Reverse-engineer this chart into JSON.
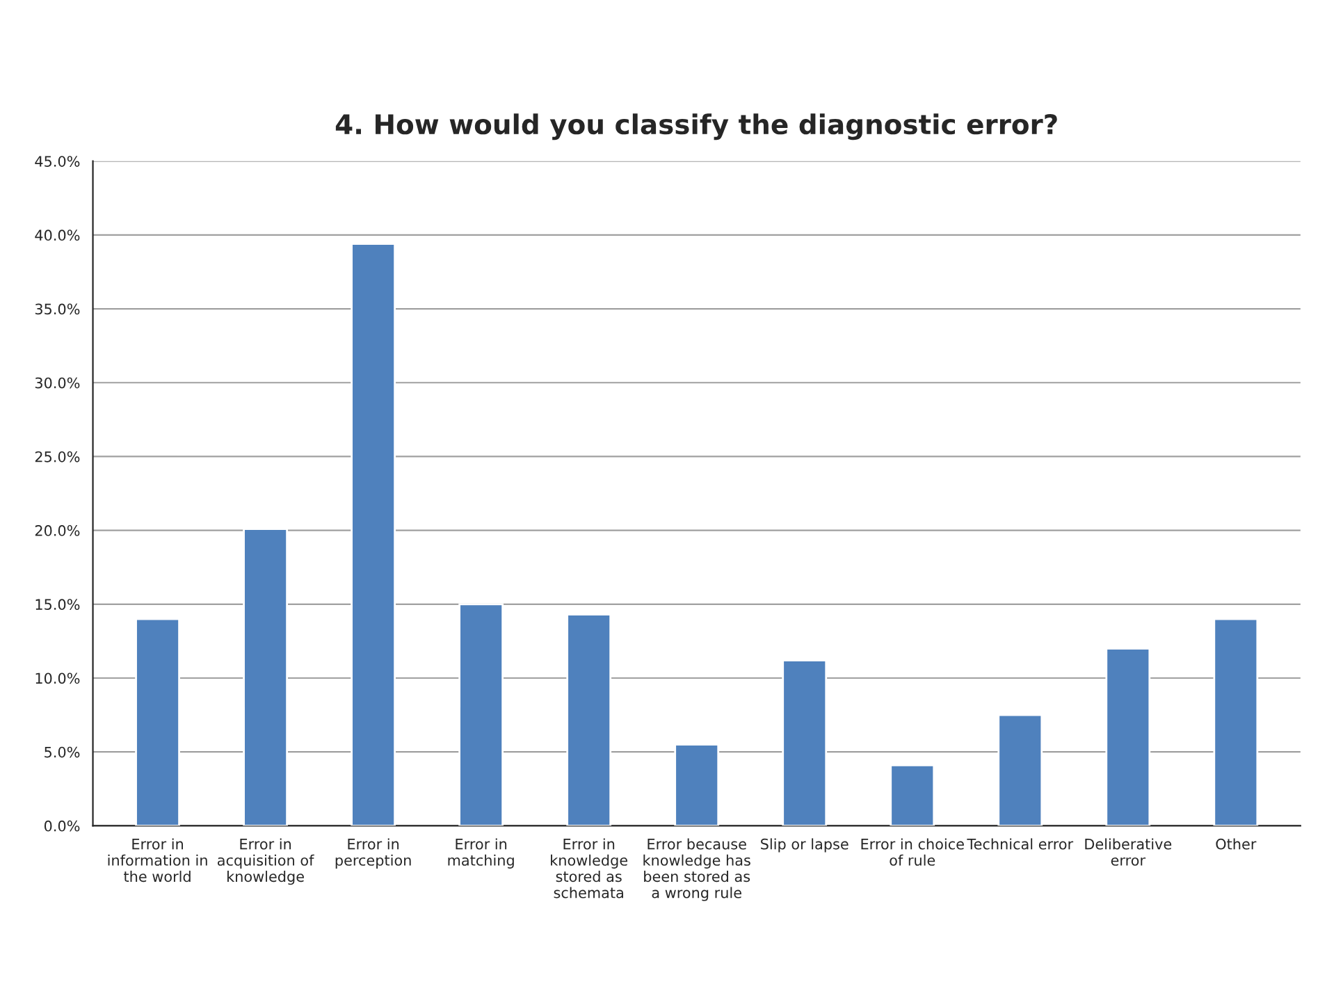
{
  "chart_data": {
    "type": "bar",
    "title": "4. How would you classify the diagnostic error?",
    "categories": [
      "Error in\ninformation in\nthe world",
      "Error in\nacquisition of\nknowledge",
      "Error in\nperception",
      "Error in\nmatching",
      "Error in\nknowledge\nstored as\nschemata",
      "Error because\nknowledge has\nbeen stored as\na wrong rule",
      "Slip or lapse",
      "Error in choice\nof rule",
      "Technical error",
      "Deliberative\nerror",
      "Other"
    ],
    "values": [
      14.0,
      20.1,
      39.4,
      15.0,
      14.3,
      5.5,
      11.2,
      4.1,
      7.5,
      12.0,
      14.0
    ],
    "color": "#4f81bd",
    "ylim": [
      0,
      45
    ],
    "yticks": [
      {
        "value": 0,
        "label": "0.0%"
      },
      {
        "value": 5,
        "label": "5.0%"
      },
      {
        "value": 10,
        "label": "10.0%"
      },
      {
        "value": 15,
        "label": "15.0%"
      },
      {
        "value": 20,
        "label": "20.0%"
      },
      {
        "value": 25,
        "label": "25.0%"
      },
      {
        "value": 30,
        "label": "30.0%"
      },
      {
        "value": 35,
        "label": "35.0%"
      },
      {
        "value": 40,
        "label": "40.0%"
      },
      {
        "value": 45,
        "label": "45.0%"
      }
    ],
    "grid": "y",
    "legend": false
  }
}
